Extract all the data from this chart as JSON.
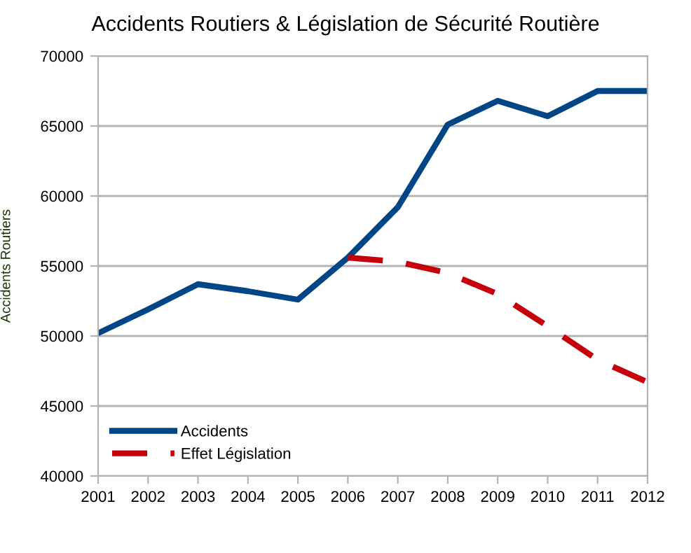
{
  "chart_data": {
    "type": "line",
    "title": "Accidents Routiers & Législation de Sécurité Routière",
    "ylabel": "Accidents Routiers",
    "x": [
      2001,
      2002,
      2003,
      2004,
      2005,
      2006,
      2007,
      2008,
      2009,
      2010,
      2011,
      2012
    ],
    "series": [
      {
        "name": "Accidents",
        "color": "#004586",
        "line_style": "solid",
        "values": [
          50200,
          51900,
          53700,
          53200,
          52600,
          55600,
          59200,
          65100,
          66800,
          65700,
          67500,
          67500
        ]
      },
      {
        "name": "Effet Législation",
        "color": "#c5000b",
        "line_style": "dashed",
        "values": [
          null,
          null,
          null,
          null,
          null,
          55600,
          55300,
          54500,
          53000,
          50700,
          48300,
          46700
        ]
      }
    ],
    "xlim": [
      2001,
      2012
    ],
    "xticks": [
      2001,
      2002,
      2003,
      2004,
      2005,
      2006,
      2007,
      2008,
      2009,
      2010,
      2011,
      2012
    ],
    "ylim": [
      40000,
      70000
    ],
    "yticks": [
      40000,
      45000,
      50000,
      55000,
      60000,
      65000,
      70000
    ],
    "grid": "y",
    "legend": "bottom left",
    "marker": "none"
  }
}
